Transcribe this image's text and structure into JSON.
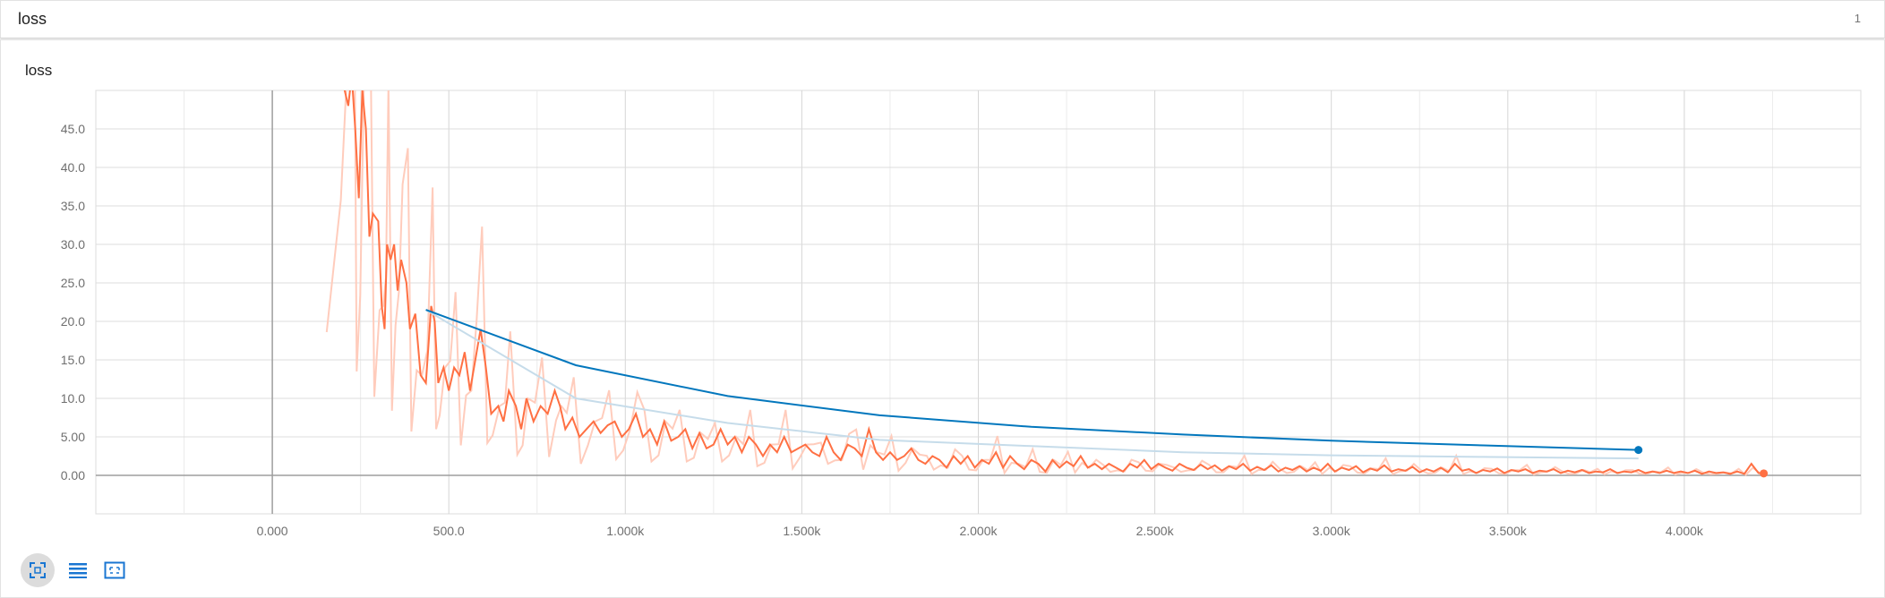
{
  "group": {
    "title": "loss",
    "count": "1"
  },
  "card": {
    "title": "loss"
  },
  "toolbar": {
    "buttons": [
      {
        "name": "fit-domain-button",
        "icon": "expand-icon"
      },
      {
        "name": "toggle-log-button",
        "icon": "list-icon"
      },
      {
        "name": "zoom-selection-button",
        "icon": "selection-icon"
      }
    ]
  },
  "chart_data": {
    "type": "line",
    "title": "loss",
    "xlabel": "",
    "ylabel": "",
    "xlim": [
      -500,
      4500
    ],
    "ylim": [
      -5,
      50
    ],
    "x_ticks": [
      "0.000",
      "500.0",
      "1.000k",
      "1.500k",
      "2.000k",
      "2.500k",
      "3.000k",
      "3.500k",
      "4.000k"
    ],
    "x_tick_values": [
      0,
      500,
      1000,
      1500,
      2000,
      2500,
      3000,
      3500,
      4000
    ],
    "y_ticks": [
      "0.00",
      "5.00",
      "10.0",
      "15.0",
      "20.0",
      "25.0",
      "30.0",
      "35.0",
      "40.0",
      "45.0"
    ],
    "y_tick_values": [
      0,
      5,
      10,
      15,
      20,
      25,
      30,
      35,
      40,
      45
    ],
    "grid": true,
    "legend": "none",
    "series": [
      {
        "color": "#ff7043",
        "smoothed": [
          [
            150,
            62
          ],
          [
            190,
            55
          ],
          [
            205,
            50
          ],
          [
            215,
            48
          ],
          [
            225,
            52
          ],
          [
            235,
            45
          ],
          [
            245,
            36
          ],
          [
            255,
            50
          ],
          [
            265,
            45
          ],
          [
            275,
            31
          ],
          [
            285,
            34
          ],
          [
            300,
            33
          ],
          [
            310,
            22
          ],
          [
            318,
            19
          ],
          [
            325,
            30
          ],
          [
            335,
            28
          ],
          [
            345,
            30
          ],
          [
            355,
            24
          ],
          [
            365,
            28
          ],
          [
            380,
            25
          ],
          [
            390,
            19
          ],
          [
            405,
            21
          ],
          [
            420,
            13
          ],
          [
            435,
            12
          ],
          [
            450,
            22
          ],
          [
            460,
            20
          ],
          [
            470,
            12
          ],
          [
            485,
            14
          ],
          [
            500,
            11
          ],
          [
            515,
            14
          ],
          [
            530,
            13
          ],
          [
            545,
            16
          ],
          [
            560,
            11
          ],
          [
            575,
            15
          ],
          [
            590,
            19
          ],
          [
            605,
            14
          ],
          [
            620,
            8
          ],
          [
            640,
            9
          ],
          [
            655,
            7
          ],
          [
            670,
            11
          ],
          [
            690,
            9
          ],
          [
            705,
            6
          ],
          [
            720,
            10
          ],
          [
            740,
            7
          ],
          [
            760,
            9
          ],
          [
            780,
            8
          ],
          [
            800,
            11
          ],
          [
            815,
            9
          ],
          [
            830,
            6
          ],
          [
            850,
            7.5
          ],
          [
            870,
            5
          ],
          [
            890,
            6
          ],
          [
            910,
            7
          ],
          [
            930,
            5.5
          ],
          [
            950,
            6.5
          ],
          [
            970,
            7
          ],
          [
            990,
            5
          ],
          [
            1010,
            6
          ],
          [
            1030,
            8
          ],
          [
            1050,
            5
          ],
          [
            1070,
            6
          ],
          [
            1090,
            4
          ],
          [
            1110,
            7
          ],
          [
            1130,
            4.5
          ],
          [
            1150,
            5
          ],
          [
            1170,
            6
          ],
          [
            1190,
            3.5
          ],
          [
            1210,
            5.5
          ],
          [
            1230,
            3.5
          ],
          [
            1250,
            4
          ],
          [
            1270,
            6
          ],
          [
            1290,
            4
          ],
          [
            1310,
            5
          ],
          [
            1330,
            3
          ],
          [
            1350,
            5
          ],
          [
            1370,
            4
          ],
          [
            1390,
            2.5
          ],
          [
            1410,
            4
          ],
          [
            1430,
            3
          ],
          [
            1450,
            5
          ],
          [
            1470,
            3
          ],
          [
            1490,
            3.5
          ],
          [
            1510,
            4
          ],
          [
            1530,
            3
          ],
          [
            1550,
            2.5
          ],
          [
            1570,
            5
          ],
          [
            1590,
            3
          ],
          [
            1610,
            2
          ],
          [
            1630,
            4
          ],
          [
            1650,
            3.5
          ],
          [
            1670,
            2.5
          ],
          [
            1690,
            6
          ],
          [
            1710,
            3
          ],
          [
            1730,
            2
          ],
          [
            1750,
            3
          ],
          [
            1770,
            2
          ],
          [
            1790,
            2.5
          ],
          [
            1810,
            3.5
          ],
          [
            1830,
            2
          ],
          [
            1850,
            1.5
          ],
          [
            1870,
            2.5
          ],
          [
            1890,
            2
          ],
          [
            1910,
            1
          ],
          [
            1930,
            2.5
          ],
          [
            1950,
            1.5
          ],
          [
            1970,
            2.5
          ],
          [
            1990,
            1
          ],
          [
            2010,
            2
          ],
          [
            2030,
            1.5
          ],
          [
            2050,
            3
          ],
          [
            2070,
            1
          ],
          [
            2090,
            2.5
          ],
          [
            2110,
            1.5
          ],
          [
            2130,
            0.8
          ],
          [
            2150,
            2
          ],
          [
            2170,
            1.5
          ],
          [
            2190,
            0.5
          ],
          [
            2210,
            2
          ],
          [
            2230,
            1
          ],
          [
            2250,
            1.8
          ],
          [
            2270,
            1.2
          ],
          [
            2290,
            2.5
          ],
          [
            2310,
            1
          ],
          [
            2330,
            1.5
          ],
          [
            2350,
            0.8
          ],
          [
            2370,
            1.5
          ],
          [
            2390,
            1
          ],
          [
            2410,
            0.5
          ],
          [
            2430,
            1.5
          ],
          [
            2450,
            1
          ],
          [
            2470,
            2
          ],
          [
            2490,
            0.8
          ],
          [
            2510,
            1.5
          ],
          [
            2530,
            1
          ],
          [
            2550,
            0.6
          ],
          [
            2570,
            1.5
          ],
          [
            2590,
            1
          ],
          [
            2610,
            0.7
          ],
          [
            2630,
            1.4
          ],
          [
            2650,
            0.8
          ],
          [
            2670,
            1.3
          ],
          [
            2690,
            0.6
          ],
          [
            2710,
            1.2
          ],
          [
            2730,
            0.8
          ],
          [
            2750,
            1.5
          ],
          [
            2770,
            0.6
          ],
          [
            2790,
            1.1
          ],
          [
            2810,
            0.7
          ],
          [
            2830,
            1.3
          ],
          [
            2850,
            0.5
          ],
          [
            2870,
            1
          ],
          [
            2890,
            0.7
          ],
          [
            2910,
            1.2
          ],
          [
            2930,
            0.5
          ],
          [
            2950,
            1
          ],
          [
            2970,
            0.6
          ],
          [
            2990,
            1.5
          ],
          [
            3010,
            0.5
          ],
          [
            3030,
            1
          ],
          [
            3050,
            0.7
          ],
          [
            3070,
            1.2
          ],
          [
            3090,
            0.4
          ],
          [
            3110,
            0.9
          ],
          [
            3130,
            0.6
          ],
          [
            3150,
            1.3
          ],
          [
            3170,
            0.5
          ],
          [
            3190,
            0.8
          ],
          [
            3210,
            0.6
          ],
          [
            3230,
            1.1
          ],
          [
            3250,
            0.4
          ],
          [
            3270,
            0.8
          ],
          [
            3290,
            0.5
          ],
          [
            3310,
            1
          ],
          [
            3330,
            0.4
          ],
          [
            3350,
            1.5
          ],
          [
            3370,
            0.6
          ],
          [
            3390,
            0.8
          ],
          [
            3410,
            0.3
          ],
          [
            3430,
            0.7
          ],
          [
            3450,
            0.5
          ],
          [
            3470,
            0.9
          ],
          [
            3490,
            0.3
          ],
          [
            3510,
            0.7
          ],
          [
            3530,
            0.5
          ],
          [
            3550,
            0.8
          ],
          [
            3570,
            0.3
          ],
          [
            3590,
            0.6
          ],
          [
            3610,
            0.5
          ],
          [
            3630,
            0.8
          ],
          [
            3650,
            0.3
          ],
          [
            3670,
            0.6
          ],
          [
            3690,
            0.4
          ],
          [
            3710,
            0.7
          ],
          [
            3730,
            0.3
          ],
          [
            3750,
            0.5
          ],
          [
            3770,
            0.4
          ],
          [
            3790,
            0.8
          ],
          [
            3810,
            0.3
          ],
          [
            3830,
            0.5
          ],
          [
            3850,
            0.4
          ],
          [
            3870,
            0.7
          ],
          [
            3890,
            0.3
          ],
          [
            3910,
            0.5
          ],
          [
            3930,
            0.3
          ],
          [
            3950,
            0.6
          ],
          [
            3970,
            0.3
          ],
          [
            3990,
            0.5
          ],
          [
            4010,
            0.3
          ],
          [
            4030,
            0.6
          ],
          [
            4050,
            0.2
          ],
          [
            4070,
            0.5
          ],
          [
            4090,
            0.3
          ],
          [
            4110,
            0.4
          ],
          [
            4130,
            0.2
          ],
          [
            4150,
            0.5
          ],
          [
            4170,
            0.2
          ],
          [
            4190,
            1.5
          ],
          [
            4210,
            0.3
          ],
          [
            4225,
            0.25
          ]
        ]
      },
      {
        "color": "#0277bd",
        "smoothed": [
          [
            435,
            21.5
          ],
          [
            860,
            14.3
          ],
          [
            1290,
            10.3
          ],
          [
            1720,
            7.8
          ],
          [
            2150,
            6.3
          ],
          [
            2580,
            5.3
          ],
          [
            3000,
            4.5
          ],
          [
            3430,
            3.9
          ],
          [
            3870,
            3.3
          ]
        ],
        "raw": [
          [
            435,
            21.5
          ],
          [
            860,
            10
          ],
          [
            1290,
            6.8
          ],
          [
            1720,
            4.6
          ],
          [
            2150,
            3.8
          ],
          [
            2580,
            3.0
          ],
          [
            3000,
            2.6
          ],
          [
            3430,
            2.4
          ],
          [
            3870,
            2.2
          ]
        ]
      }
    ]
  }
}
